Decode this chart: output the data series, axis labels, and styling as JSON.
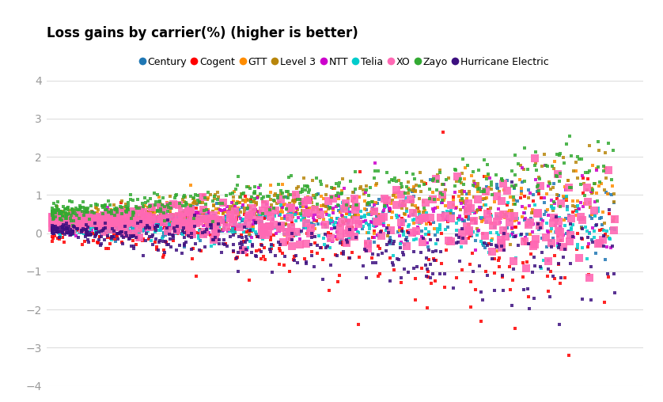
{
  "title": "Loss gains by carrier(%) (higher is better)",
  "carriers": [
    {
      "name": "Century",
      "color": "#1F77B4"
    },
    {
      "name": "Cogent",
      "color": "#FF0000"
    },
    {
      "name": "GTT",
      "color": "#FF8C00"
    },
    {
      "name": "Level 3",
      "color": "#B8860B"
    },
    {
      "name": "NTT",
      "color": "#CC00CC"
    },
    {
      "name": "Telia",
      "color": "#00CCCC"
    },
    {
      "name": "XO",
      "color": "#FF69B4"
    },
    {
      "name": "Zayo",
      "color": "#33AA33"
    },
    {
      "name": "Hurricane Electric",
      "color": "#3D1080"
    }
  ],
  "ylim": [
    -4,
    4
  ],
  "n_points": 400,
  "seed": 7,
  "bg_color": "#FFFFFF",
  "grid_color": "#DDDDDD",
  "title_fontsize": 12,
  "legend_fontsize": 9,
  "marker_size": 3
}
